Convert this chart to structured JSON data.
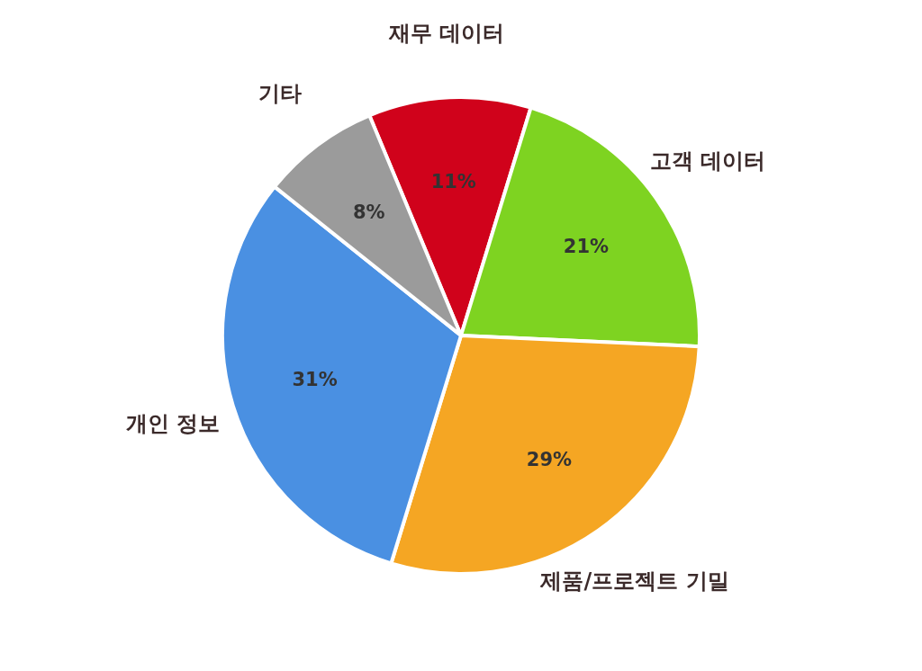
{
  "chart_data": {
    "type": "pie",
    "categories": [
      "재무 데이터",
      "고객 데이터",
      "제품/프로젝트 기밀",
      "개인 정보",
      "기타"
    ],
    "values": [
      11,
      21,
      29,
      31,
      8
    ],
    "colors": [
      "#d0021b",
      "#7ed321",
      "#f5a623",
      "#4a90e2",
      "#9b9b9b"
    ],
    "value_labels": [
      "11%",
      "21%",
      "29%",
      "31%",
      "8%"
    ],
    "legend": false
  }
}
